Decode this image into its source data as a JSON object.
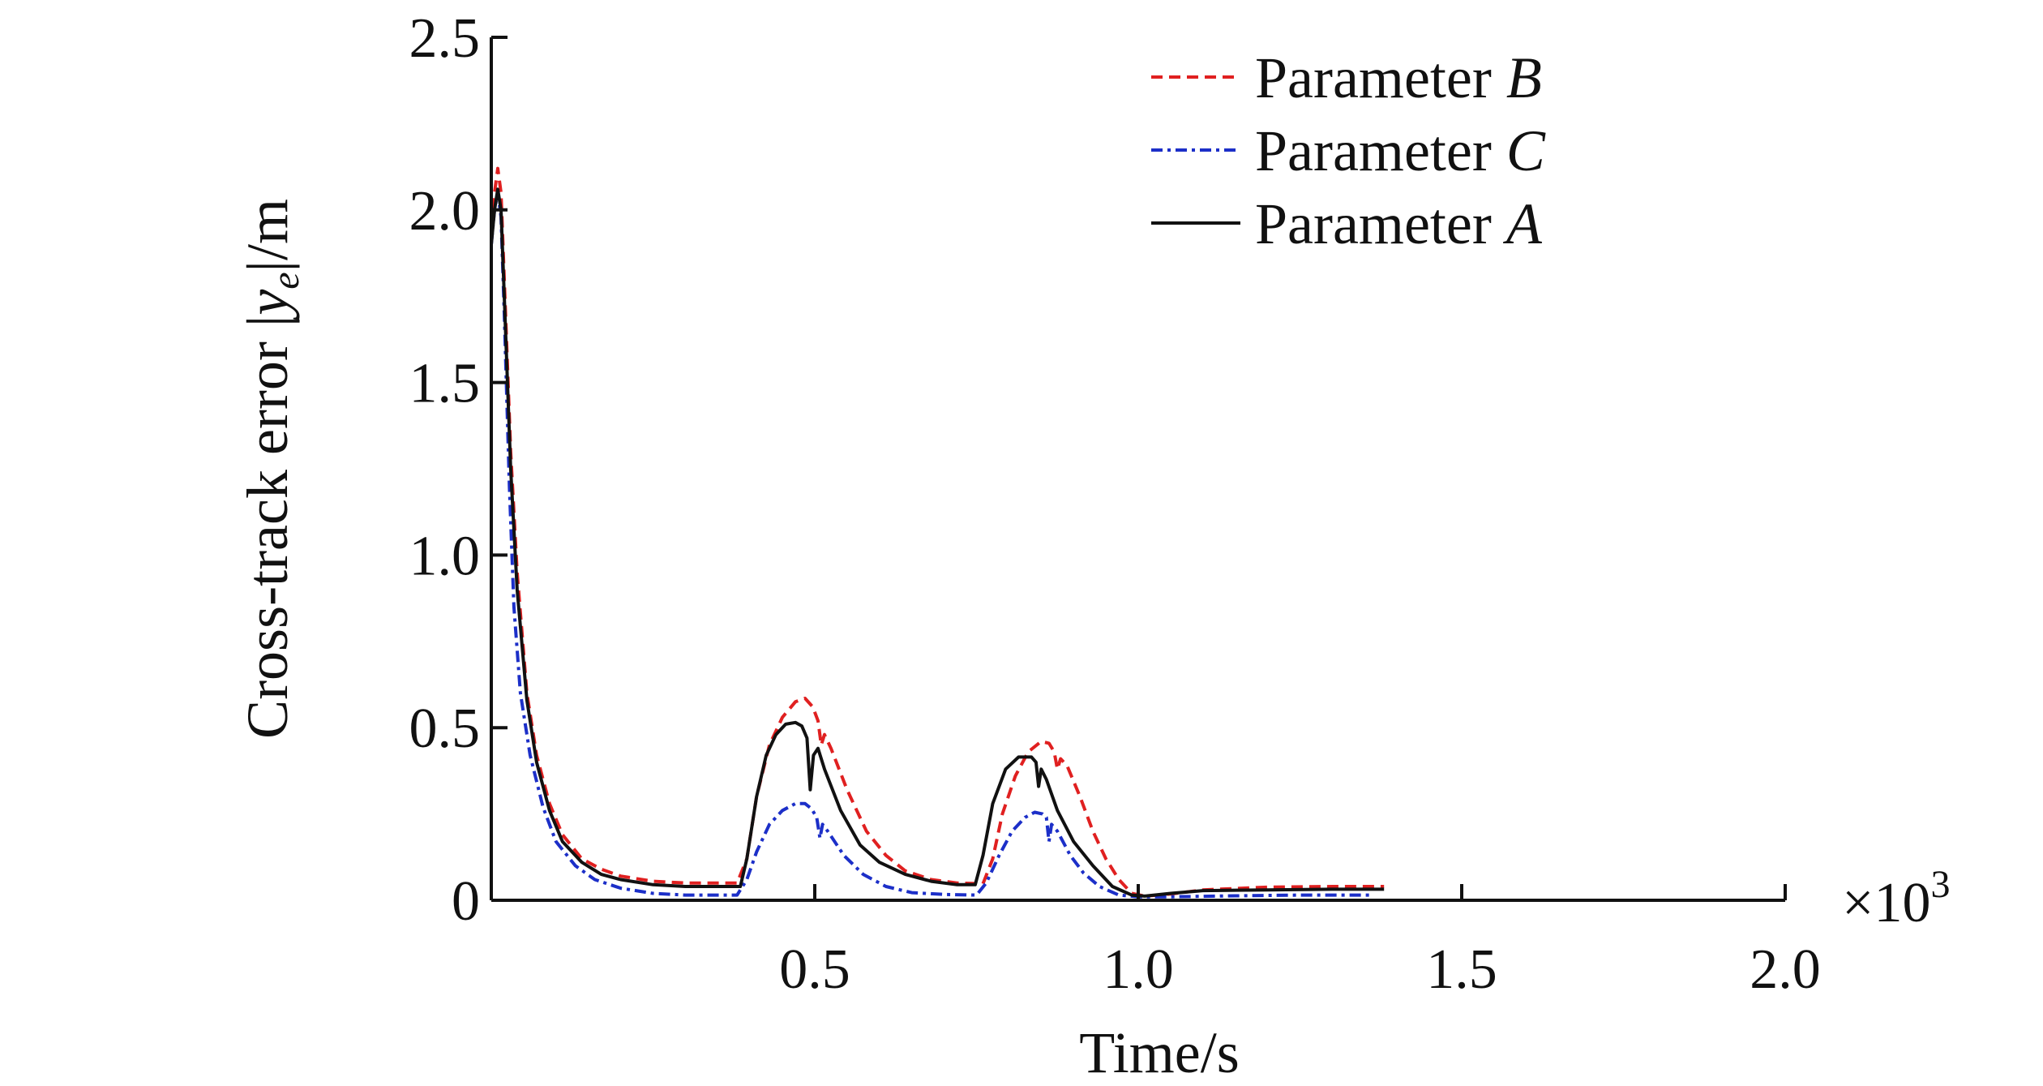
{
  "chart_data": {
    "type": "line",
    "xlabel": "Time/s",
    "ylabel_prefix": "Cross-track error |",
    "ylabel_var": "y",
    "ylabel_sub": "e",
    "ylabel_suffix": "|/m",
    "x_multiplier_base": "×10",
    "x_multiplier_exp": "3",
    "xlim": [
      0,
      2000
    ],
    "ylim": [
      0,
      2.5
    ],
    "x_ticks": [
      500,
      1000,
      1500,
      2000
    ],
    "x_tick_labels": [
      "0.5",
      "1.0",
      "1.5",
      "2.0"
    ],
    "y_ticks": [
      0,
      0.5,
      1.0,
      1.5,
      2.0,
      2.5
    ],
    "y_tick_labels": [
      "0",
      "0.5",
      "1.0",
      "1.5",
      "2.0",
      "2.5"
    ],
    "grid": false,
    "legend_position": "top-right",
    "series": [
      {
        "name_text": "Parameter ",
        "name_var": "B",
        "color": "#e02020",
        "dash": "dashed",
        "points": [
          [
            0,
            1.95
          ],
          [
            5,
            2.05
          ],
          [
            10,
            2.12
          ],
          [
            15,
            2.05
          ],
          [
            20,
            1.8
          ],
          [
            30,
            1.3
          ],
          [
            40,
            0.95
          ],
          [
            55,
            0.6
          ],
          [
            70,
            0.42
          ],
          [
            90,
            0.28
          ],
          [
            110,
            0.19
          ],
          [
            140,
            0.12
          ],
          [
            170,
            0.09
          ],
          [
            200,
            0.07
          ],
          [
            250,
            0.055
          ],
          [
            300,
            0.05
          ],
          [
            350,
            0.05
          ],
          [
            380,
            0.05
          ],
          [
            395,
            0.12
          ],
          [
            410,
            0.3
          ],
          [
            430,
            0.45
          ],
          [
            450,
            0.53
          ],
          [
            470,
            0.575
          ],
          [
            485,
            0.585
          ],
          [
            497,
            0.56
          ],
          [
            505,
            0.52
          ],
          [
            510,
            0.45
          ],
          [
            515,
            0.48
          ],
          [
            525,
            0.44
          ],
          [
            550,
            0.32
          ],
          [
            580,
            0.2
          ],
          [
            610,
            0.13
          ],
          [
            640,
            0.085
          ],
          [
            680,
            0.06
          ],
          [
            720,
            0.05
          ],
          [
            760,
            0.048
          ],
          [
            775,
            0.12
          ],
          [
            790,
            0.25
          ],
          [
            810,
            0.36
          ],
          [
            830,
            0.43
          ],
          [
            850,
            0.46
          ],
          [
            862,
            0.455
          ],
          [
            870,
            0.43
          ],
          [
            875,
            0.38
          ],
          [
            880,
            0.41
          ],
          [
            890,
            0.39
          ],
          [
            910,
            0.3
          ],
          [
            930,
            0.2
          ],
          [
            950,
            0.12
          ],
          [
            970,
            0.06
          ],
          [
            990,
            0.02
          ],
          [
            1010,
            0.012
          ],
          [
            1050,
            0.018
          ],
          [
            1100,
            0.03
          ],
          [
            1200,
            0.038
          ],
          [
            1300,
            0.04
          ],
          [
            1380,
            0.04
          ]
        ]
      },
      {
        "name_text": "Parameter ",
        "name_var": "C",
        "color": "#1c2fc8",
        "dash": "dashdot",
        "points": [
          [
            0,
            1.9
          ],
          [
            5,
            2.0
          ],
          [
            10,
            2.05
          ],
          [
            15,
            1.98
          ],
          [
            20,
            1.7
          ],
          [
            28,
            1.2
          ],
          [
            35,
            0.85
          ],
          [
            45,
            0.6
          ],
          [
            60,
            0.42
          ],
          [
            80,
            0.27
          ],
          [
            100,
            0.17
          ],
          [
            130,
            0.1
          ],
          [
            160,
            0.06
          ],
          [
            200,
            0.035
          ],
          [
            250,
            0.02
          ],
          [
            300,
            0.015
          ],
          [
            350,
            0.015
          ],
          [
            380,
            0.015
          ],
          [
            395,
            0.06
          ],
          [
            410,
            0.14
          ],
          [
            430,
            0.22
          ],
          [
            450,
            0.26
          ],
          [
            470,
            0.28
          ],
          [
            485,
            0.28
          ],
          [
            495,
            0.265
          ],
          [
            503,
            0.24
          ],
          [
            508,
            0.18
          ],
          [
            512,
            0.22
          ],
          [
            520,
            0.2
          ],
          [
            545,
            0.13
          ],
          [
            575,
            0.075
          ],
          [
            610,
            0.04
          ],
          [
            650,
            0.022
          ],
          [
            700,
            0.017
          ],
          [
            750,
            0.015
          ],
          [
            765,
            0.05
          ],
          [
            785,
            0.13
          ],
          [
            805,
            0.2
          ],
          [
            825,
            0.24
          ],
          [
            840,
            0.255
          ],
          [
            852,
            0.25
          ],
          [
            858,
            0.24
          ],
          [
            862,
            0.17
          ],
          [
            866,
            0.22
          ],
          [
            875,
            0.2
          ],
          [
            895,
            0.13
          ],
          [
            915,
            0.08
          ],
          [
            940,
            0.04
          ],
          [
            970,
            0.015
          ],
          [
            1000,
            0.01
          ],
          [
            1050,
            0.01
          ],
          [
            1150,
            0.013
          ],
          [
            1250,
            0.015
          ],
          [
            1360,
            0.015
          ]
        ]
      },
      {
        "name_text": "Parameter ",
        "name_var": "A",
        "color": "#111111",
        "dash": "solid",
        "points": [
          [
            0,
            1.9
          ],
          [
            5,
            2.0
          ],
          [
            10,
            2.06
          ],
          [
            15,
            2.0
          ],
          [
            20,
            1.75
          ],
          [
            30,
            1.25
          ],
          [
            40,
            0.9
          ],
          [
            55,
            0.58
          ],
          [
            70,
            0.4
          ],
          [
            90,
            0.26
          ],
          [
            110,
            0.17
          ],
          [
            140,
            0.11
          ],
          [
            170,
            0.075
          ],
          [
            200,
            0.06
          ],
          [
            250,
            0.045
          ],
          [
            300,
            0.04
          ],
          [
            350,
            0.04
          ],
          [
            385,
            0.04
          ],
          [
            395,
            0.12
          ],
          [
            410,
            0.3
          ],
          [
            425,
            0.42
          ],
          [
            440,
            0.48
          ],
          [
            455,
            0.51
          ],
          [
            470,
            0.515
          ],
          [
            480,
            0.505
          ],
          [
            488,
            0.47
          ],
          [
            493,
            0.32
          ],
          [
            498,
            0.42
          ],
          [
            505,
            0.44
          ],
          [
            515,
            0.38
          ],
          [
            540,
            0.26
          ],
          [
            570,
            0.16
          ],
          [
            600,
            0.11
          ],
          [
            640,
            0.075
          ],
          [
            680,
            0.055
          ],
          [
            720,
            0.045
          ],
          [
            748,
            0.045
          ],
          [
            760,
            0.13
          ],
          [
            775,
            0.28
          ],
          [
            795,
            0.38
          ],
          [
            815,
            0.415
          ],
          [
            835,
            0.415
          ],
          [
            842,
            0.4
          ],
          [
            846,
            0.33
          ],
          [
            850,
            0.38
          ],
          [
            858,
            0.35
          ],
          [
            875,
            0.26
          ],
          [
            900,
            0.17
          ],
          [
            930,
            0.1
          ],
          [
            960,
            0.04
          ],
          [
            990,
            0.015
          ],
          [
            1010,
            0.012
          ],
          [
            1050,
            0.02
          ],
          [
            1100,
            0.028
          ],
          [
            1200,
            0.03
          ],
          [
            1300,
            0.032
          ],
          [
            1380,
            0.032
          ]
        ]
      }
    ]
  }
}
